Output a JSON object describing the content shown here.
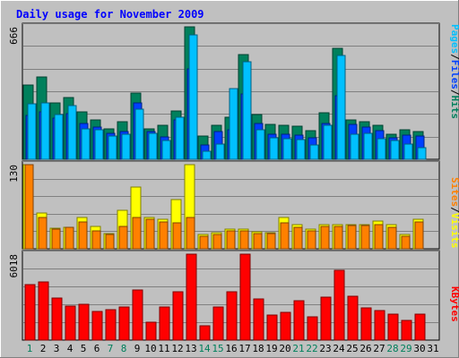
{
  "title": "Daily usage for November 2009",
  "colors": {
    "background": "#c0c0c0",
    "plot_bg": "#c0c0c0",
    "title": "#0000ff",
    "grid": "#808080",
    "hits": "#00805c",
    "files": "#0040ff",
    "pages": "#00c0ff",
    "visits": "#ffff00",
    "sites": "#ff8000",
    "kbytes": "#ff0000",
    "day_normal": "#000000",
    "day_weekend": "#00805c"
  },
  "legends": {
    "top": [
      {
        "text": "Pages",
        "color": "#00c0ff"
      },
      {
        "text": "/",
        "color": "#000000"
      },
      {
        "text": "Files",
        "color": "#0040ff"
      },
      {
        "text": "/",
        "color": "#000000"
      },
      {
        "text": "Hits",
        "color": "#00805c"
      }
    ],
    "mid": [
      {
        "text": "Sites",
        "color": "#ff8000"
      },
      {
        "text": "/",
        "color": "#000000"
      },
      {
        "text": "Visits",
        "color": "#ffff00"
      }
    ],
    "bot": [
      {
        "text": "KBytes",
        "color": "#ff0000"
      }
    ]
  },
  "chart_data": [
    {
      "type": "bar",
      "panel": "hits-files-pages",
      "ymax_label": "666",
      "ylim": [
        0,
        666
      ],
      "categories": [
        "1",
        "2",
        "3",
        "4",
        "5",
        "6",
        "7",
        "8",
        "9",
        "10",
        "11",
        "12",
        "13",
        "14",
        "15",
        "16",
        "17",
        "18",
        "19",
        "20",
        "21",
        "22",
        "23",
        "24",
        "25",
        "26",
        "27",
        "28",
        "29",
        "30",
        "31"
      ],
      "weekend_days": [
        "1",
        "7",
        "8",
        "14",
        "15",
        "21",
        "22",
        "28",
        "29"
      ],
      "series": [
        {
          "name": "Hits",
          "values": [
            372,
            412,
            282,
            310,
            240,
            200,
            155,
            190,
            333,
            155,
            173,
            245,
            666,
            118,
            170,
            210,
            528,
            223,
            175,
            170,
            165,
            143,
            232,
            560,
            198,
            190,
            172,
            125,
            150,
            140,
            0
          ]
        },
        {
          "name": "Files",
          "values": [
            222,
            240,
            208,
            230,
            180,
            160,
            130,
            140,
            285,
            140,
            112,
            200,
            455,
            70,
            138,
            150,
            330,
            180,
            128,
            125,
            120,
            110,
            182,
            320,
            175,
            162,
            142,
            108,
            120,
            115,
            0
          ]
        },
        {
          "name": "Pages",
          "values": [
            280,
            282,
            225,
            270,
            155,
            150,
            115,
            125,
            250,
            130,
            95,
            210,
            625,
            40,
            75,
            355,
            490,
            150,
            108,
            105,
            100,
            70,
            170,
            522,
            125,
            130,
            105,
            95,
            75,
            60,
            0
          ]
        }
      ]
    },
    {
      "type": "bar",
      "panel": "visits-sites",
      "ymax_label": "130",
      "ylim": [
        0,
        130
      ],
      "categories": [
        "1",
        "2",
        "3",
        "4",
        "5",
        "6",
        "7",
        "8",
        "9",
        "10",
        "11",
        "12",
        "13",
        "14",
        "15",
        "16",
        "17",
        "18",
        "19",
        "20",
        "21",
        "22",
        "23",
        "24",
        "25",
        "26",
        "27",
        "28",
        "29",
        "30",
        "31"
      ],
      "series": [
        {
          "name": "Visits",
          "values": [
            130,
            55,
            32,
            33,
            48,
            35,
            23,
            60,
            95,
            48,
            45,
            76,
            130,
            22,
            25,
            30,
            30,
            26,
            25,
            48,
            37,
            30,
            37,
            38,
            38,
            38,
            43,
            37,
            22,
            45,
            0
          ]
        },
        {
          "name": "Sites",
          "values": [
            130,
            48,
            30,
            33,
            42,
            28,
            22,
            35,
            48,
            45,
            42,
            40,
            48,
            20,
            22,
            28,
            28,
            24,
            23,
            40,
            33,
            28,
            35,
            35,
            36,
            36,
            38,
            33,
            20,
            42,
            0
          ]
        }
      ]
    },
    {
      "type": "bar",
      "panel": "kbytes",
      "ymax_label": "6018",
      "ylim": [
        0,
        6018
      ],
      "categories": [
        "1",
        "2",
        "3",
        "4",
        "5",
        "6",
        "7",
        "8",
        "9",
        "10",
        "11",
        "12",
        "13",
        "14",
        "15",
        "16",
        "17",
        "18",
        "19",
        "20",
        "21",
        "22",
        "23",
        "24",
        "25",
        "26",
        "27",
        "28",
        "29",
        "30",
        "31"
      ],
      "series": [
        {
          "name": "KBytes",
          "values": [
            3860,
            4050,
            2940,
            2410,
            2500,
            2020,
            2130,
            2300,
            3500,
            1270,
            2300,
            3410,
            6018,
            1000,
            2300,
            3400,
            6018,
            2870,
            1730,
            1920,
            2780,
            1630,
            3000,
            4860,
            3090,
            2230,
            2050,
            1800,
            1400,
            1800,
            0
          ]
        }
      ]
    }
  ]
}
